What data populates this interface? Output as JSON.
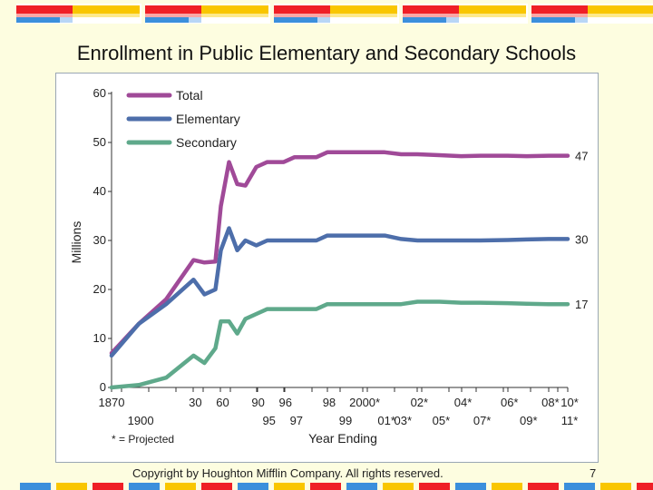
{
  "slide": {
    "title": "Enrollment in Public Elementary and Secondary Schools",
    "copyright": "Copyright by Houghton Mifflin Company. All rights reserved.",
    "page_number": "7",
    "stripe_colors": [
      "#ef1f26",
      "#f9a7a6",
      "#3b8fdc",
      "#b8d6f6",
      "#f9c600",
      "#fde98b"
    ]
  },
  "chart_data": {
    "type": "line",
    "title": "",
    "xlabel": "Year Ending",
    "ylabel": "Millions",
    "ylim": [
      0,
      60
    ],
    "yticks": [
      0,
      10,
      20,
      30,
      40,
      50,
      60
    ],
    "x_categories_upper": [
      "1870",
      "30",
      "60",
      "90",
      "96",
      "98",
      "2000*",
      "02*",
      "04*",
      "06*",
      "08*",
      "10*"
    ],
    "x_categories_lower": [
      "1900",
      "95",
      "97",
      "99",
      "01*",
      "03*",
      "05*",
      "07*",
      "09*",
      "11*"
    ],
    "footnote": "* = Projected",
    "legend_position": "top-left",
    "series": [
      {
        "name": "Total",
        "color": "#a04a98",
        "end_label": "47",
        "points": [
          [
            0,
            7
          ],
          [
            1,
            13
          ],
          [
            2,
            18
          ],
          [
            3,
            26
          ],
          [
            3.4,
            25.5
          ],
          [
            3.8,
            25.7
          ],
          [
            4,
            37
          ],
          [
            4.3,
            46
          ],
          [
            4.6,
            41.5
          ],
          [
            4.9,
            41.2
          ],
          [
            5.3,
            45
          ],
          [
            5.7,
            46
          ],
          [
            6.3,
            46
          ],
          [
            6.7,
            47
          ],
          [
            7.5,
            47
          ],
          [
            7.9,
            48
          ],
          [
            8.5,
            48
          ],
          [
            9.2,
            48
          ],
          [
            10,
            48
          ],
          [
            10.6,
            47.6
          ],
          [
            11.2,
            47.6
          ],
          [
            12,
            47.4
          ],
          [
            12.8,
            47.2
          ],
          [
            13.5,
            47.3
          ],
          [
            14.5,
            47.3
          ],
          [
            15.2,
            47.2
          ],
          [
            16,
            47.3
          ],
          [
            16.7,
            47.3
          ]
        ]
      },
      {
        "name": "Elementary",
        "color": "#4d6eaa",
        "end_label": "30",
        "points": [
          [
            0,
            6.5
          ],
          [
            1,
            13
          ],
          [
            2,
            17
          ],
          [
            3,
            22
          ],
          [
            3.4,
            19
          ],
          [
            3.8,
            20
          ],
          [
            4,
            28
          ],
          [
            4.3,
            32.5
          ],
          [
            4.6,
            28
          ],
          [
            4.9,
            30
          ],
          [
            5.3,
            29
          ],
          [
            5.7,
            30
          ],
          [
            6.3,
            30
          ],
          [
            6.7,
            30
          ],
          [
            7.5,
            30
          ],
          [
            7.9,
            31
          ],
          [
            8.5,
            31
          ],
          [
            9.2,
            31
          ],
          [
            10,
            31
          ],
          [
            10.6,
            30.3
          ],
          [
            11.2,
            30
          ],
          [
            12,
            30
          ],
          [
            12.8,
            30
          ],
          [
            13.5,
            30
          ],
          [
            14.5,
            30.1
          ],
          [
            15.2,
            30.2
          ],
          [
            16,
            30.3
          ],
          [
            16.7,
            30.3
          ]
        ]
      },
      {
        "name": "Secondary",
        "color": "#5fa98b",
        "end_label": "17",
        "points": [
          [
            0,
            0
          ],
          [
            1,
            0.5
          ],
          [
            2,
            2
          ],
          [
            3,
            6.5
          ],
          [
            3.4,
            5
          ],
          [
            3.8,
            8
          ],
          [
            4,
            13.5
          ],
          [
            4.3,
            13.5
          ],
          [
            4.6,
            11
          ],
          [
            4.9,
            14
          ],
          [
            5.3,
            15
          ],
          [
            5.7,
            16
          ],
          [
            6.3,
            16
          ],
          [
            6.7,
            16
          ],
          [
            7.5,
            16
          ],
          [
            7.9,
            17
          ],
          [
            8.5,
            17
          ],
          [
            9.2,
            17
          ],
          [
            10,
            17
          ],
          [
            10.6,
            17
          ],
          [
            11.2,
            17.5
          ],
          [
            12,
            17.5
          ],
          [
            12.8,
            17.3
          ],
          [
            13.5,
            17.3
          ],
          [
            14.5,
            17.2
          ],
          [
            15.2,
            17.1
          ],
          [
            16,
            17.0
          ],
          [
            16.7,
            17.0
          ]
        ]
      }
    ]
  }
}
